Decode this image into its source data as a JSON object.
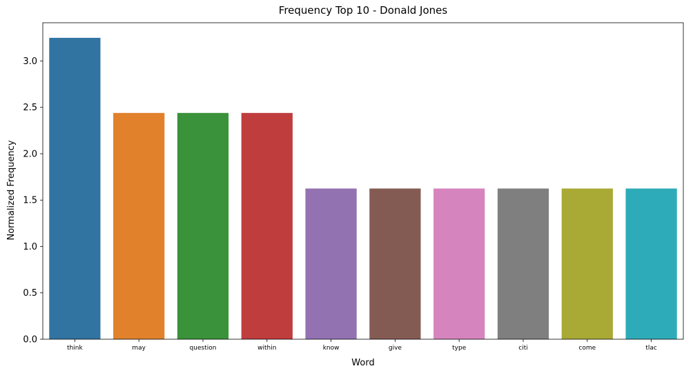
{
  "chart_data": {
    "type": "bar",
    "title": "Frequency Top 10 - Donald Jones",
    "xlabel": "Word",
    "ylabel": "Normalized Frequency",
    "categories": [
      "think",
      "may",
      "question",
      "within",
      "know",
      "give",
      "type",
      "citi",
      "come",
      "tlac"
    ],
    "values": [
      3.25,
      2.44,
      2.44,
      2.44,
      1.625,
      1.625,
      1.625,
      1.625,
      1.625,
      1.625
    ],
    "colors": [
      "#3274a1",
      "#e1812c",
      "#3a923a",
      "#c03d3e",
      "#9372b2",
      "#845b53",
      "#d684bd",
      "#7f7f7f",
      "#a9aa35",
      "#2eabb8"
    ],
    "ylim": [
      0,
      3.4125
    ],
    "yticks": [
      0.0,
      0.5,
      1.0,
      1.5,
      2.0,
      2.5,
      3.0
    ],
    "ytick_labels": [
      "0.0",
      "0.5",
      "1.0",
      "1.5",
      "2.0",
      "2.5",
      "3.0"
    ],
    "grid": false,
    "legend": "none"
  }
}
